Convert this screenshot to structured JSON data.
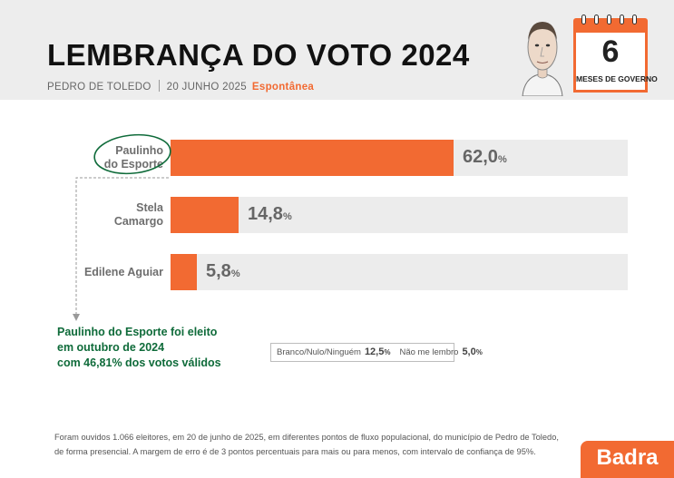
{
  "header": {
    "title": "LEMBRANÇA DO VOTO 2024",
    "location": "PEDRO DE TOLEDO",
    "date": "20 JUNHO 2025",
    "mode": "Espontânea"
  },
  "calendar": {
    "number": "6",
    "label": "MESES DE GOVERNO",
    "accent_color": "#f26a32"
  },
  "chart_data": {
    "type": "bar",
    "orientation": "horizontal",
    "categories": [
      "Paulinho do Esporte",
      "Stela Camargo",
      "Edilene Aguiar"
    ],
    "category_lines": [
      [
        "Paulinho",
        "do Esporte"
      ],
      [
        "Stela",
        "Camargo"
      ],
      [
        "Edilene Aguiar"
      ]
    ],
    "values": [
      62.0,
      14.8,
      5.8
    ],
    "value_labels": [
      "62,0",
      "14,8",
      "5,8"
    ],
    "unit": "%",
    "xlim": [
      0,
      100
    ],
    "bar_color": "#f26a32",
    "track_color": "#ececec",
    "highlight_index": 0
  },
  "note": {
    "lines": [
      "Paulinho do Esporte foi eleito",
      "em outubro de 2024",
      "com 46,81% dos votos válidos"
    ],
    "color": "#0f6b3a"
  },
  "others": {
    "blank_label": "Branco/Nulo/Ninguém",
    "blank_value": "12,5",
    "no_recall_label": "Não me lembro",
    "no_recall_value": "5,0",
    "unit": "%"
  },
  "footer": {
    "line1": "Foram ouvidos 1.066 eleitores, em 20 de junho de 2025, em diferentes pontos de fluxo populacional, do município de Pedro de Toledo,",
    "line2": "de forma presencial. A margem de erro é de 3 pontos percentuais para mais ou para menos, com intervalo de confiança de 95%."
  },
  "brand": {
    "name": "Badra"
  }
}
